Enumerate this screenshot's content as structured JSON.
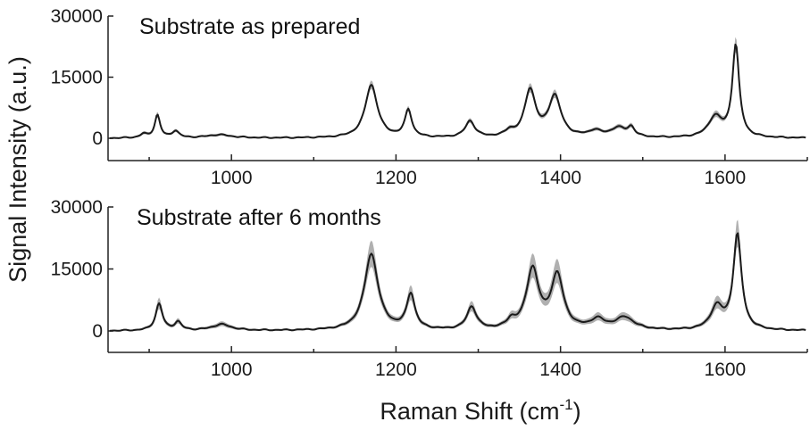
{
  "figure": {
    "ylabel": "Signal Intensity (a.u.)",
    "xlabel_main": "Raman Shift (cm",
    "xlabel_sup": "-1",
    "xlabel_close": ")"
  },
  "chart_data": [
    {
      "type": "line",
      "title": "Substrate as prepared",
      "xlim": [
        850,
        1700
      ],
      "ylim": [
        0,
        30000
      ],
      "xticks": [
        1000,
        1200,
        1400,
        1600
      ],
      "xtick_labels": [
        "1000",
        "1200",
        "1400",
        "1600"
      ],
      "yticks": [
        0,
        15000,
        30000
      ],
      "ytick_labels": [
        "0",
        "15000",
        "30000"
      ],
      "line_color": "#1a1a1a",
      "band_color": "#b0b0b0",
      "peaks": [
        {
          "x": 893,
          "y": 900,
          "w": 5,
          "band": 200
        },
        {
          "x": 910,
          "y": 5600,
          "w": 4,
          "band": 500
        },
        {
          "x": 932,
          "y": 1700,
          "w": 5,
          "band": 200
        },
        {
          "x": 985,
          "y": 800,
          "w": 18,
          "band": 150
        },
        {
          "x": 1170,
          "y": 13000,
          "w": 9,
          "band": 900
        },
        {
          "x": 1215,
          "y": 6700,
          "w": 5,
          "band": 500
        },
        {
          "x": 1290,
          "y": 4000,
          "w": 7,
          "band": 400
        },
        {
          "x": 1338,
          "y": 1300,
          "w": 6,
          "band": 200
        },
        {
          "x": 1363,
          "y": 11500,
          "w": 8,
          "band": 900
        },
        {
          "x": 1393,
          "y": 10000,
          "w": 9,
          "band": 800
        },
        {
          "x": 1442,
          "y": 1500,
          "w": 9,
          "band": 200
        },
        {
          "x": 1470,
          "y": 2300,
          "w": 11,
          "band": 300
        },
        {
          "x": 1486,
          "y": 2200,
          "w": 5,
          "band": 300
        },
        {
          "x": 1588,
          "y": 5000,
          "w": 10,
          "band": 600
        },
        {
          "x": 1613,
          "y": 22500,
          "w": 5,
          "band": 1600
        }
      ]
    },
    {
      "type": "line",
      "title": "Substrate after 6 months",
      "xlim": [
        850,
        1700
      ],
      "ylim": [
        0,
        30000
      ],
      "xticks": [
        1000,
        1200,
        1400,
        1600
      ],
      "xtick_labels": [
        "1000",
        "1200",
        "1400",
        "1600"
      ],
      "yticks": [
        0,
        15000,
        30000
      ],
      "ytick_labels": [
        "0",
        "15000",
        "30000"
      ],
      "line_color": "#1a1a1a",
      "band_color": "#b0b0b0",
      "peaks": [
        {
          "x": 912,
          "y": 6500,
          "w": 5,
          "band": 1200
        },
        {
          "x": 935,
          "y": 2000,
          "w": 5,
          "band": 400
        },
        {
          "x": 988,
          "y": 1500,
          "w": 14,
          "band": 400
        },
        {
          "x": 1170,
          "y": 18500,
          "w": 10,
          "band": 3000
        },
        {
          "x": 1218,
          "y": 8500,
          "w": 6,
          "band": 1500
        },
        {
          "x": 1292,
          "y": 5500,
          "w": 7,
          "band": 1000
        },
        {
          "x": 1340,
          "y": 1800,
          "w": 6,
          "band": 400
        },
        {
          "x": 1366,
          "y": 14500,
          "w": 9,
          "band": 2500
        },
        {
          "x": 1396,
          "y": 13000,
          "w": 9,
          "band": 2500
        },
        {
          "x": 1445,
          "y": 2300,
          "w": 10,
          "band": 600
        },
        {
          "x": 1478,
          "y": 3000,
          "w": 14,
          "band": 700
        },
        {
          "x": 1590,
          "y": 5500,
          "w": 9,
          "band": 1200
        },
        {
          "x": 1615,
          "y": 23000,
          "w": 6,
          "band": 3000
        }
      ]
    }
  ]
}
